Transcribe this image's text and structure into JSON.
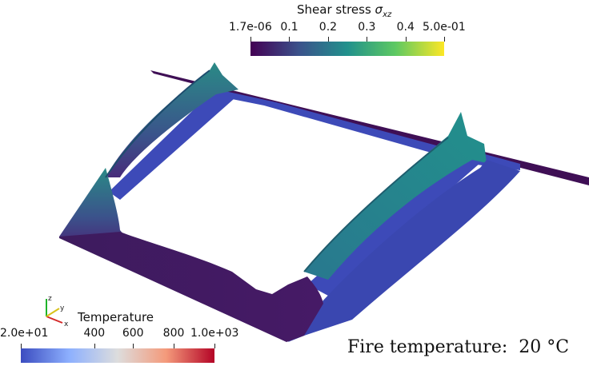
{
  "shear_colorbar": {
    "title_text": "Shear stress ",
    "title_symbol": "σ",
    "title_subscript": "xz",
    "ticks": [
      "1.7e-06",
      "0.1",
      "0.2",
      "0.3",
      "0.4",
      "5.0e-01"
    ],
    "colors": [
      "#440154",
      "#3b528b",
      "#21918c",
      "#5ec962",
      "#fde725"
    ]
  },
  "temperature_colorbar": {
    "title": "Temperature",
    "ticks": [
      "2.0e+01",
      "400",
      "600",
      "800",
      "1.0e+03"
    ],
    "colors": [
      "#3b4cc0",
      "#8db0fe",
      "#dddddd",
      "#f49a7b",
      "#b40426"
    ]
  },
  "fire_label": {
    "prefix": "Fire temperature:",
    "value": "20 °C"
  },
  "axes_triad": {
    "x": "x",
    "y": "y",
    "z": "z"
  }
}
